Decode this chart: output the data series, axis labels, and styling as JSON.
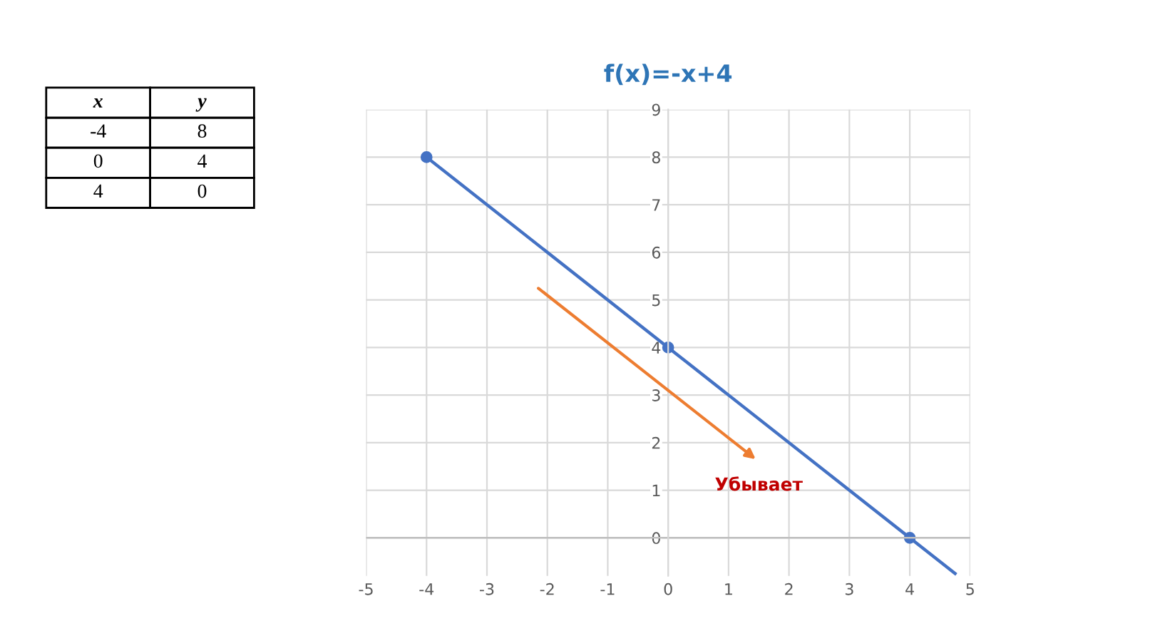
{
  "chart_data": {
    "type": "line",
    "title": "f(x)=-x+4",
    "series": [
      {
        "color": "#4472c4",
        "x": [
          -4,
          0,
          4
        ],
        "values": [
          8,
          4,
          0
        ]
      },
      {
        "color": "#4472c4",
        "x": [
          4,
          4.75
        ],
        "values": [
          0,
          -0.75
        ],
        "marker": "none"
      }
    ],
    "marker": "circle",
    "line_style": "solid",
    "grid": true,
    "xlim": [
      -5,
      5
    ],
    "xticks": [
      -5,
      -4,
      -3,
      -2,
      -1,
      0,
      1,
      2,
      3,
      4,
      5
    ],
    "ylim": [
      -0.8,
      9
    ],
    "yticks": [
      0,
      1,
      2,
      3,
      4,
      5,
      6,
      7,
      8,
      9
    ],
    "annotations": [
      "x",
      "y",
      "-4",
      "8",
      "0",
      "4",
      "4",
      "0",
      "Убывает"
    ]
  }
}
